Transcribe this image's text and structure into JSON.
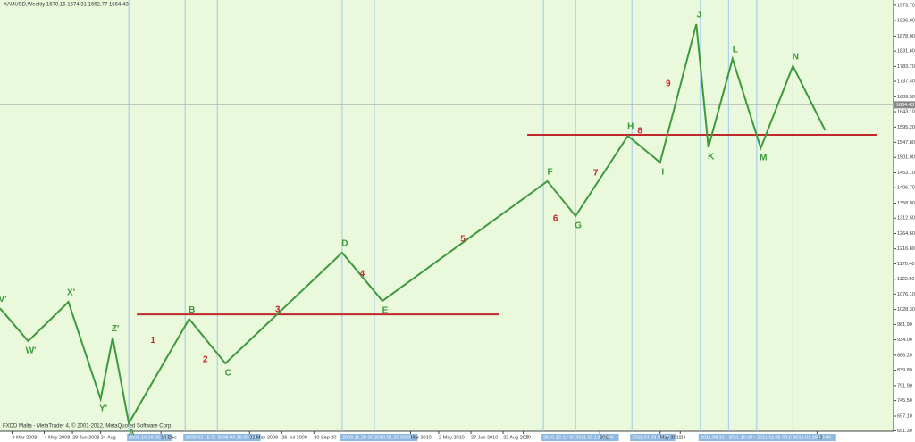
{
  "chart_data": {
    "type": "line",
    "title": "XAUUSD,Weekly 1670.15 1674.31 1662.77 1664.43",
    "footer": "FXDD Malta - MetaTrader 4, © 2001-2012, MetaQuoted Software Corp.",
    "x": [
      0,
      7,
      17,
      25,
      28,
      32,
      47,
      56,
      85,
      95,
      136,
      143,
      156,
      164,
      173,
      176,
      182,
      189,
      197,
      205
    ],
    "series": [
      {
        "name": "Wave",
        "color": "#3c9a3c",
        "values": [
          1032,
          930,
          1052,
          750,
          941,
          675,
          999,
          861,
          1205,
          1055,
          1427,
          1319,
          1568,
          1485,
          1915,
          1532,
          1807,
          1530,
          1785,
          1585
        ],
        "point_labels": [
          "V'",
          "W'",
          "X'",
          "Y'",
          "Z'",
          "A",
          "B",
          "C",
          "D",
          "E",
          "F",
          "G",
          "H",
          "I",
          "J",
          "K",
          "L",
          "M",
          "N",
          null
        ]
      }
    ],
    "annotations": [
      {
        "text": "1",
        "x": 38,
        "y": 932
      },
      {
        "text": "2",
        "x": 51,
        "y": 872
      },
      {
        "text": "3",
        "x": 69,
        "y": 1028
      },
      {
        "text": "4",
        "x": 90,
        "y": 1139
      },
      {
        "text": "5",
        "x": 115,
        "y": 1247
      },
      {
        "text": "6",
        "x": 138,
        "y": 1311
      },
      {
        "text": "7",
        "x": 148,
        "y": 1452
      },
      {
        "text": "8",
        "x": 159,
        "y": 1582
      },
      {
        "text": "9",
        "x": 166,
        "y": 1730
      }
    ],
    "hlines": [
      {
        "value": 1013,
        "from": 34,
        "to": 124,
        "color": "#c0282d"
      },
      {
        "value": 1571,
        "from": 131,
        "to": 218,
        "color": "#c0282d"
      }
    ],
    "current_price": {
      "value": 1664.43,
      "label": "1664.43"
    },
    "xlim": [
      0,
      222
    ],
    "xticks": [
      {
        "value": 3,
        "label": "9 Mar 2008"
      },
      {
        "value": 11,
        "label": "4 May 2008"
      },
      {
        "value": 18,
        "label": "29 Jun 2008"
      },
      {
        "value": 25,
        "label": "24 Aug"
      },
      {
        "value": 32,
        "label": "2008.10.19 00:00",
        "highlight": true
      },
      {
        "value": 40,
        "label": "14 Dec"
      },
      {
        "value": 46,
        "label": "2009.02.15 00:00",
        "highlight": true
      },
      {
        "value": 54,
        "label": "2009.04.19 00:00",
        "highlight": true
      },
      {
        "value": 62,
        "label": "31 May 2009"
      },
      {
        "value": 70,
        "label": "26 Jul 2009"
      },
      {
        "value": 78,
        "label": "20 Sep 20"
      },
      {
        "value": 85,
        "label": "2009.11.29 00:00",
        "highlight": true
      },
      {
        "value": 93,
        "label": "2010.01.31 00:00",
        "highlight": true
      },
      {
        "value": 102,
        "label": "Mar 2010"
      },
      {
        "value": 109,
        "label": "2 May 2010"
      },
      {
        "value": 117,
        "label": "27 Jun 2010"
      },
      {
        "value": 125,
        "label": "22 Aug 2010"
      },
      {
        "value": 130,
        "label": "17"
      },
      {
        "value": 135,
        "label": "2010.12.12 00:00",
        "highlight": true
      },
      {
        "value": 143,
        "label": "2011.02.13 00:00",
        "highlight": true
      },
      {
        "value": 149,
        "label": "2011"
      },
      {
        "value": 157,
        "label": "2011.04.03 00:00",
        "highlight": true
      },
      {
        "value": 164,
        "label": "May 2011"
      },
      {
        "value": 169,
        "label": "24"
      },
      {
        "value": 174,
        "label": "2011.08.21 00:00",
        "highlight": true
      },
      {
        "value": 181,
        "label": "2011.10.09 00:00",
        "highlight": true
      },
      {
        "value": 188,
        "label": "2011.11.06 00:00",
        "highlight": true
      },
      {
        "value": 197,
        "label": "2012.01.29 00:00",
        "highlight": true
      },
      {
        "value": 203,
        "label": "12"
      }
    ],
    "ylim": [
      650,
      1990
    ],
    "yticks": [
      {
        "value": 1973.7,
        "label": "1973.70"
      },
      {
        "value": 1926,
        "label": "1926.00"
      },
      {
        "value": 1878,
        "label": "1878.00"
      },
      {
        "value": 1831.6,
        "label": "1831.60"
      },
      {
        "value": 1783.7,
        "label": "1783.70"
      },
      {
        "value": 1737.4,
        "label": "1737.40"
      },
      {
        "value": 1689.5,
        "label": "1689.50"
      },
      {
        "value": 1643.1,
        "label": "1643.10"
      },
      {
        "value": 1595.2,
        "label": "1595.20"
      },
      {
        "value": 1547.8,
        "label": "1547.80"
      },
      {
        "value": 1501,
        "label": "1501.00"
      },
      {
        "value": 1453.1,
        "label": "1453.10"
      },
      {
        "value": 1406.7,
        "label": "1406.70"
      },
      {
        "value": 1358.9,
        "label": "1358.90"
      },
      {
        "value": 1312.5,
        "label": "1312.50"
      },
      {
        "value": 1264.6,
        "label": "1264.60"
      },
      {
        "value": 1216.8,
        "label": "1216.80"
      },
      {
        "value": 1170.4,
        "label": "1170.40"
      },
      {
        "value": 1122.5,
        "label": "1122.50"
      },
      {
        "value": 1076.1,
        "label": "1076.10"
      },
      {
        "value": 1028.3,
        "label": "1028.30"
      },
      {
        "value": 981.9,
        "label": "981.90"
      },
      {
        "value": 934,
        "label": "934.00"
      },
      {
        "value": 886.2,
        "label": "886.20"
      },
      {
        "value": 839.8,
        "label": "839.80"
      },
      {
        "value": 791.9,
        "label": "791.90"
      },
      {
        "value": 745.5,
        "label": "745.50"
      },
      {
        "value": 697.1,
        "label": "697.10"
      },
      {
        "value": 651.3,
        "label": "651.30"
      }
    ]
  }
}
